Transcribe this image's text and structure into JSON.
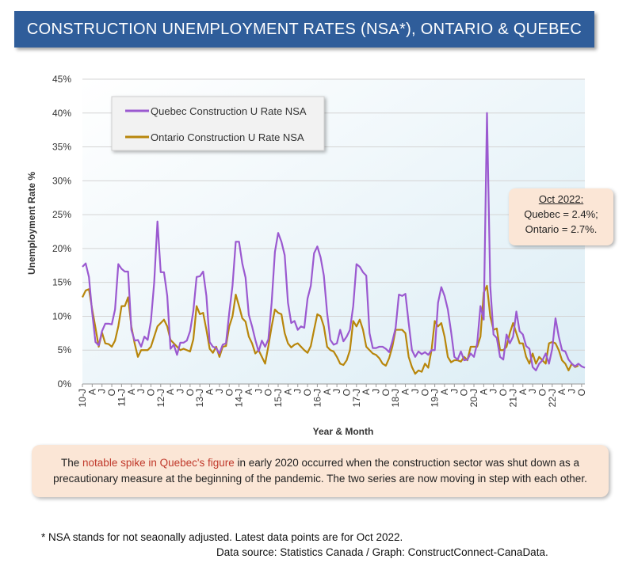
{
  "title": "CONSTRUCTION UNEMPLOYMENT RATES (NSA*),  ONTARIO & QUEBEC",
  "callout": {
    "heading": "Oct 2022:",
    "line1": "Quebec = 2.4%;",
    "line2": "Ontario = 2.7%."
  },
  "note": {
    "before": "The ",
    "highlight": "notable spike in Quebec's figure",
    "after": " in early 2020 occurred when the construction sector was shut down as a precautionary measure at the beginning of the pandemic. The two series are now moving in step with each other."
  },
  "footnote1": "* NSA stands for not seaonally adjusted. Latest data points are for Oct 2022.",
  "footnote2": "Data source: Statistics Canada / Graph: ConstructConnect-CanaData.",
  "chart_data": {
    "type": "line",
    "title": "CONSTRUCTION UNEMPLOYMENT RATES (NSA*),  ONTARIO & QUEBEC",
    "xlabel": "Year & Month",
    "ylabel": "Unemployment Rate %",
    "ylim": [
      0,
      45
    ],
    "yticks": [
      "0%",
      "5%",
      "10%",
      "15%",
      "20%",
      "25%",
      "30%",
      "35%",
      "40%",
      "45%"
    ],
    "x_tick_labels": [
      "10-J",
      "A",
      "J",
      "O",
      "11-J",
      "A",
      "J",
      "O",
      "12-J",
      "A",
      "J",
      "O",
      "13-J",
      "A",
      "J",
      "O",
      "14-J",
      "A",
      "J",
      "O",
      "15-J",
      "A",
      "J",
      "O",
      "16-J",
      "A",
      "J",
      "O",
      "17-J",
      "A",
      "J",
      "O",
      "18-J",
      "A",
      "J",
      "O",
      "19-J",
      "A",
      "J",
      "O",
      "20-J",
      "A",
      "J",
      "O",
      "21-J",
      "A",
      "J",
      "O",
      "22-J",
      "A",
      "J",
      "O"
    ],
    "start": "Jan 2010",
    "end": "Oct 2022",
    "colors": {
      "quebec": "#9b59d0",
      "ontario": "#b8860b"
    },
    "series": [
      {
        "name": "Quebec Construction U Rate NSA",
        "values": [
          17.3,
          17.8,
          15.8,
          10.5,
          6.2,
          5.7,
          7.8,
          8.9,
          8.9,
          8.8,
          11.0,
          17.7,
          17.0,
          16.6,
          16.6,
          8.0,
          6.4,
          6.5,
          5.5,
          7.0,
          6.5,
          9.3,
          15.0,
          24.0,
          16.5,
          16.5,
          13.0,
          5.2,
          5.8,
          4.3,
          6.1,
          6.1,
          6.4,
          7.8,
          10.8,
          15.8,
          15.9,
          16.6,
          13.0,
          6.2,
          5.5,
          5.3,
          4.5,
          5.8,
          6.0,
          10.5,
          14.5,
          21.0,
          21.0,
          17.8,
          15.7,
          10.2,
          8.5,
          6.5,
          4.8,
          6.4,
          5.5,
          6.6,
          12.0,
          19.5,
          22.3,
          21.0,
          19.0,
          12.0,
          9.0,
          9.3,
          8.0,
          8.5,
          8.3,
          12.6,
          14.5,
          19.3,
          20.3,
          18.7,
          16.0,
          10.5,
          6.5,
          5.8,
          6.0,
          8.0,
          6.3,
          7.0,
          8.0,
          11.5,
          17.7,
          17.3,
          16.5,
          16.0,
          7.5,
          5.3,
          5.3,
          5.5,
          5.5,
          5.2,
          4.7,
          6.3,
          8.3,
          13.2,
          13.0,
          13.3,
          9.0,
          5.0,
          4.0,
          4.8,
          4.4,
          4.7,
          4.3,
          5.0,
          5.0,
          12.0,
          14.3,
          13.0,
          11.0,
          7.7,
          4.0,
          3.6,
          4.8,
          3.5,
          3.6,
          4.5,
          4.0,
          6.0,
          11.5,
          9.5,
          40.0,
          14.5,
          7.3,
          6.8,
          4.0,
          3.6,
          7.3,
          6.0,
          7.0,
          10.7,
          7.8,
          7.3,
          5.6,
          5.2,
          2.5,
          2.0,
          3.0,
          3.5,
          4.5,
          3.0,
          5.2,
          9.7,
          7.0,
          5.0,
          4.8,
          3.6,
          3.0,
          2.6,
          3.0,
          2.6,
          2.4
        ]
      },
      {
        "name": "Ontario Construction U Rate NSA",
        "values": [
          12.8,
          13.8,
          14.0,
          11.0,
          8.3,
          5.5,
          7.6,
          6.0,
          5.9,
          5.5,
          6.4,
          8.5,
          11.5,
          11.5,
          12.8,
          8.5,
          6.0,
          4.0,
          5.0,
          5.0,
          5.0,
          5.5,
          7.0,
          8.5,
          9.0,
          9.5,
          8.5,
          6.5,
          6.0,
          5.5,
          5.0,
          5.2,
          5.0,
          4.8,
          6.6,
          11.5,
          10.3,
          10.5,
          8.0,
          5.2,
          4.6,
          5.5,
          4.0,
          5.5,
          5.6,
          8.5,
          10.0,
          13.2,
          11.5,
          9.7,
          9.2,
          7.0,
          6.0,
          4.5,
          5.0,
          4.0,
          3.0,
          5.6,
          8.5,
          11.0,
          10.5,
          10.3,
          7.5,
          6.0,
          5.4,
          5.8,
          6.0,
          5.5,
          5.0,
          4.6,
          5.6,
          8.0,
          10.3,
          10.0,
          8.5,
          5.5,
          5.0,
          4.8,
          4.0,
          3.0,
          2.8,
          3.5,
          5.0,
          9.3,
          8.5,
          9.5,
          8.0,
          5.5,
          5.0,
          4.5,
          4.3,
          3.8,
          3.0,
          2.7,
          3.8,
          5.5,
          8.0,
          8.0,
          8.0,
          7.5,
          4.0,
          2.5,
          1.5,
          2.0,
          1.8,
          3.0,
          2.4,
          5.0,
          9.3,
          8.5,
          9.0,
          7.0,
          4.0,
          3.2,
          3.5,
          3.5,
          3.3,
          4.0,
          3.5,
          5.5,
          5.5,
          5.5,
          7.0,
          13.5,
          14.5,
          10.0,
          8.0,
          8.2,
          5.0,
          5.0,
          5.5,
          7.5,
          9.0,
          7.5,
          6.0,
          6.0,
          4.0,
          3.0,
          4.5,
          3.0,
          4.0,
          3.5,
          3.0,
          6.0,
          6.2,
          6.0,
          5.0,
          3.5,
          3.0,
          2.0,
          3.0,
          2.5,
          2.7
        ]
      }
    ],
    "legend": [
      "Quebec Construction U Rate NSA",
      "Ontario Construction U Rate NSA"
    ]
  }
}
